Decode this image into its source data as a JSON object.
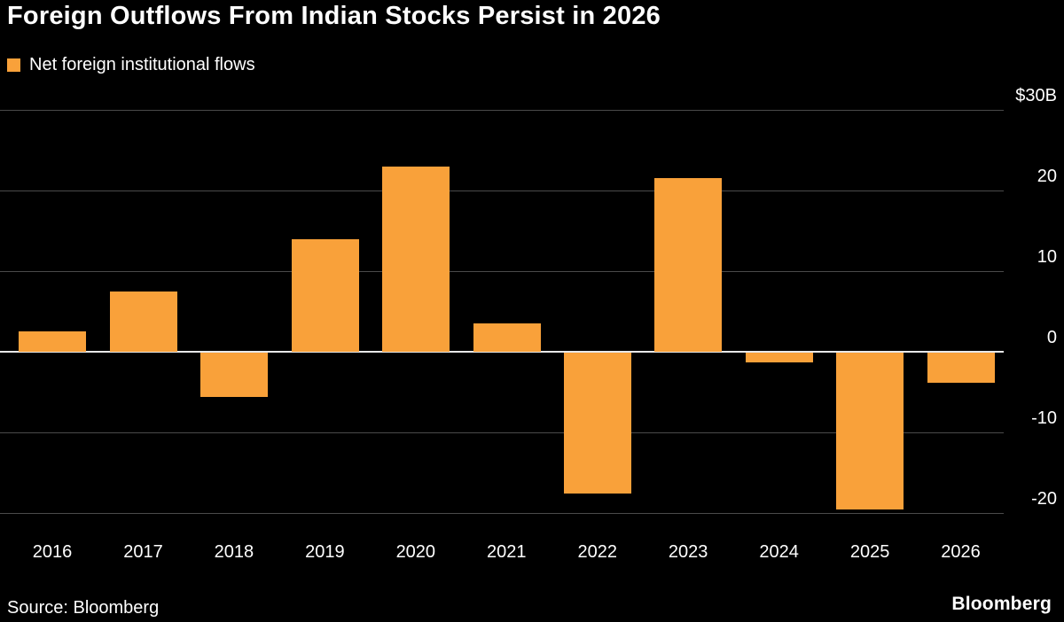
{
  "header": {
    "title": "Foreign Outflows From Indian Stocks Persist in 2026"
  },
  "legend": {
    "label": "Net foreign institutional flows",
    "color": "#F9A13A"
  },
  "footer": {
    "source": "Source: Bloomberg",
    "brand": "Bloomberg"
  },
  "chart_data": {
    "type": "bar",
    "title": "Foreign Outflows From Indian Stocks Persist in 2026",
    "series_name": "Net foreign institutional flows",
    "categories": [
      "2016",
      "2017",
      "2018",
      "2019",
      "2020",
      "2021",
      "2022",
      "2023",
      "2024",
      "2025",
      "2026"
    ],
    "values": [
      2.5,
      7.5,
      -5.5,
      14,
      23,
      3.5,
      -17.5,
      21.5,
      -1.2,
      -19.5,
      -3.7
    ],
    "unit": "USD billions",
    "xlabel": "",
    "ylabel": "",
    "ylim": [
      -23,
      30
    ],
    "yticks": [
      30,
      20,
      10,
      0,
      -10,
      -20
    ],
    "ytick_labels": [
      "$30B",
      "20",
      "10",
      "0",
      "-10",
      "-20"
    ],
    "grid": true,
    "legend_position": "top-left",
    "bar_color": "#F9A13A",
    "background_color": "#000000"
  }
}
